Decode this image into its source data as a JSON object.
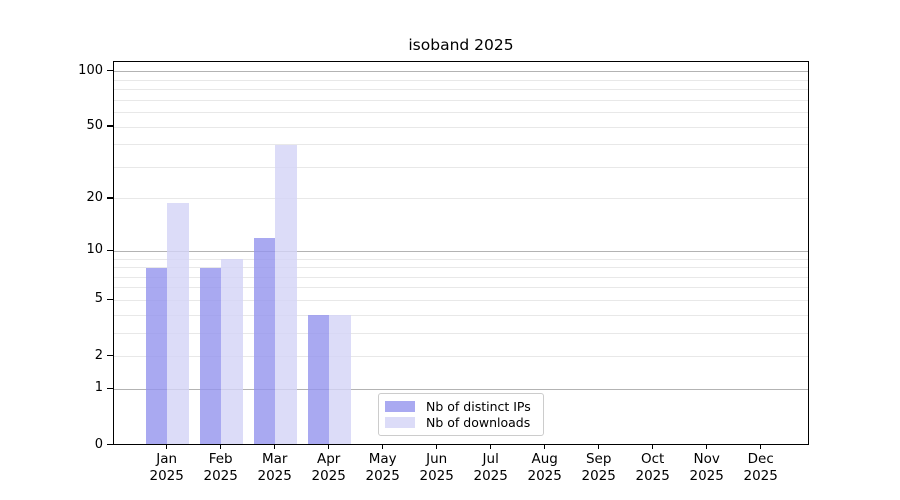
{
  "chart_data": {
    "type": "bar",
    "title": "isoband 2025",
    "x_categories": [
      "Jan",
      "Feb",
      "Mar",
      "Apr",
      "May",
      "Jun",
      "Jul",
      "Aug",
      "Sep",
      "Oct",
      "Nov",
      "Dec"
    ],
    "x_year_label": "2025",
    "series": [
      {
        "name": "Nb of distinct IPs",
        "color": "#a9a9f1",
        "values": [
          8,
          8,
          12,
          4,
          0,
          0,
          0,
          0,
          0,
          0,
          0,
          0
        ]
      },
      {
        "name": "Nb of downloads",
        "color": "#dcdcf8",
        "values": [
          19,
          9,
          40,
          4,
          0,
          0,
          0,
          0,
          0,
          0,
          0,
          0
        ]
      }
    ],
    "y_scale": "log10(1+x)",
    "y_ticks": [
      0,
      1,
      2,
      5,
      10,
      20,
      50,
      100
    ],
    "y_major_gridlines": [
      1,
      10,
      100
    ],
    "y_minor_gridlines": [
      2,
      3,
      4,
      5,
      6,
      7,
      8,
      9,
      20,
      30,
      40,
      50,
      60,
      70,
      80,
      90
    ],
    "ylim": [
      0,
      113
    ],
    "grid": true,
    "legend_position": "lower-center-inside"
  },
  "colors": {
    "background": "#ffffff",
    "axis": "#000000",
    "text": "#000000",
    "major_grid": "#b3b3b3",
    "minor_grid": "#e8e8e8",
    "legend_border": "#cccccc",
    "legend_background": "#ffffff"
  }
}
